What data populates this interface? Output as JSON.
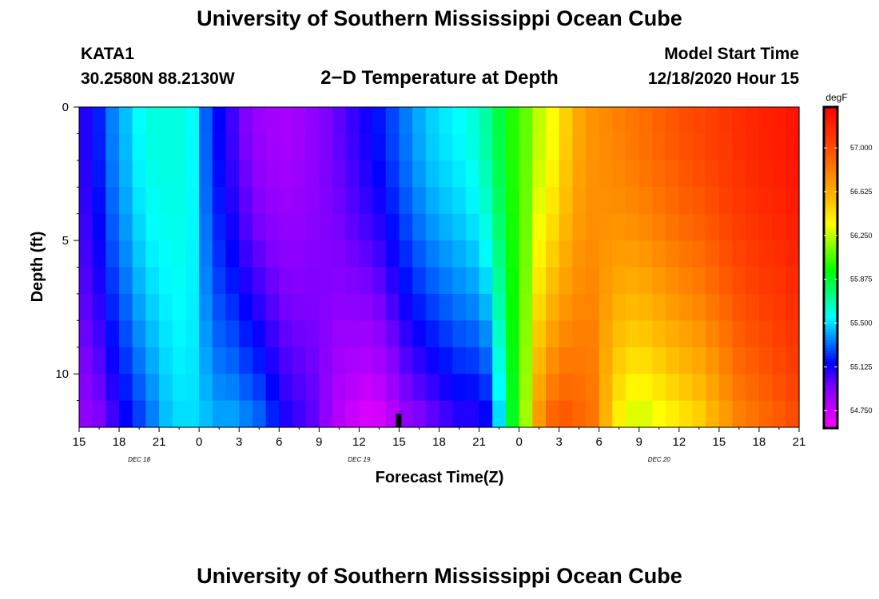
{
  "header": {
    "title": "University of Southern Mississippi Ocean Cube",
    "station": "KATA1",
    "coords": "30.2580N 88.2130W",
    "subtitle": "2−D Temperature at Depth",
    "start_label": "Model Start Time",
    "start_value": "12/18/2020 Hour 15"
  },
  "footer": {
    "title": "University of Southern Mississippi Ocean Cube"
  },
  "chart_data": {
    "type": "heatmap",
    "title": "2−D Temperature at Depth",
    "xlabel": "Forecast Time(Z)",
    "ylabel": "Depth (ft)",
    "x_tick_labels": [
      "15",
      "18",
      "21",
      "0",
      "3",
      "6",
      "9",
      "12",
      "15",
      "18",
      "21",
      "0",
      "3",
      "6",
      "9",
      "12",
      "15",
      "18",
      "21"
    ],
    "date_labels": [
      {
        "text": "DEC 18",
        "hour_offset": 4.5
      },
      {
        "text": "DEC 19",
        "hour_offset": 21
      },
      {
        "text": "DEC 20",
        "hour_offset": 43.5
      }
    ],
    "xlim_hours": [
      0,
      54
    ],
    "y_tick_labels": [
      "0",
      "5",
      "10"
    ],
    "y_ticks": [
      0,
      5,
      10
    ],
    "ylim_ft": [
      0,
      12
    ],
    "depth_levels": 12,
    "hours": [
      0,
      1,
      2,
      3,
      4,
      5,
      6,
      7,
      8,
      9,
      10,
      11,
      12,
      13,
      14,
      15,
      16,
      17,
      18,
      19,
      20,
      21,
      22,
      23,
      24,
      25,
      26,
      27,
      28,
      29,
      30,
      31,
      32,
      33,
      34,
      35,
      36,
      37,
      38,
      39,
      40,
      41,
      42,
      43,
      44,
      45,
      46,
      47,
      48,
      49,
      50,
      51,
      52,
      53
    ],
    "surface_profile": [
      55.1,
      55.2,
      55.35,
      55.45,
      55.55,
      55.6,
      55.6,
      55.6,
      55.55,
      55.3,
      55.15,
      55.05,
      54.95,
      54.88,
      54.85,
      54.84,
      54.86,
      54.9,
      54.95,
      55.0,
      55.06,
      55.12,
      55.18,
      55.26,
      55.34,
      55.42,
      55.48,
      55.52,
      55.55,
      55.6,
      55.7,
      55.85,
      56.0,
      56.1,
      56.25,
      56.35,
      56.5,
      56.65,
      56.72,
      56.76,
      56.8,
      56.84,
      56.88,
      56.92,
      56.96,
      57.0,
      57.03,
      57.06,
      57.1,
      57.14,
      57.17,
      57.2,
      57.22,
      57.25
    ],
    "bottom_profile": [
      54.9,
      54.95,
      55.05,
      55.15,
      55.25,
      55.35,
      55.45,
      55.5,
      55.5,
      55.45,
      55.4,
      55.4,
      55.35,
      55.3,
      55.2,
      55.1,
      55.05,
      55.0,
      54.9,
      54.8,
      54.75,
      54.7,
      54.72,
      54.8,
      54.9,
      54.95,
      55.0,
      55.05,
      55.1,
      55.1,
      55.15,
      55.5,
      55.9,
      56.2,
      56.7,
      56.9,
      56.95,
      56.9,
      56.85,
      56.6,
      56.4,
      56.3,
      56.3,
      56.35,
      56.4,
      56.45,
      56.5,
      56.6,
      56.7,
      56.8,
      56.85,
      56.9,
      56.95,
      57.0
    ],
    "column_indicator_hour": 24,
    "colorbar": {
      "unit": "degF",
      "min": 54.6,
      "max": 57.35,
      "tick_values": [
        57.0,
        56.625,
        56.25,
        55.875,
        55.5,
        55.125,
        54.75
      ],
      "tick_labels": [
        "57.000",
        "56.625",
        "56.250",
        "55.875",
        "55.500",
        "55.125",
        "54.750"
      ],
      "stops": [
        {
          "v": 54.6,
          "color": "#ff00ff"
        },
        {
          "v": 54.95,
          "color": "#7f00ff"
        },
        {
          "v": 55.15,
          "color": "#0000ff"
        },
        {
          "v": 55.35,
          "color": "#0080ff"
        },
        {
          "v": 55.55,
          "color": "#00ffff"
        },
        {
          "v": 55.75,
          "color": "#00ff80"
        },
        {
          "v": 55.95,
          "color": "#00ff00"
        },
        {
          "v": 56.15,
          "color": "#80ff00"
        },
        {
          "v": 56.35,
          "color": "#ffff00"
        },
        {
          "v": 56.55,
          "color": "#ffc000"
        },
        {
          "v": 56.8,
          "color": "#ff8000"
        },
        {
          "v": 57.05,
          "color": "#ff4000"
        },
        {
          "v": 57.35,
          "color": "#ff0000"
        }
      ]
    }
  }
}
